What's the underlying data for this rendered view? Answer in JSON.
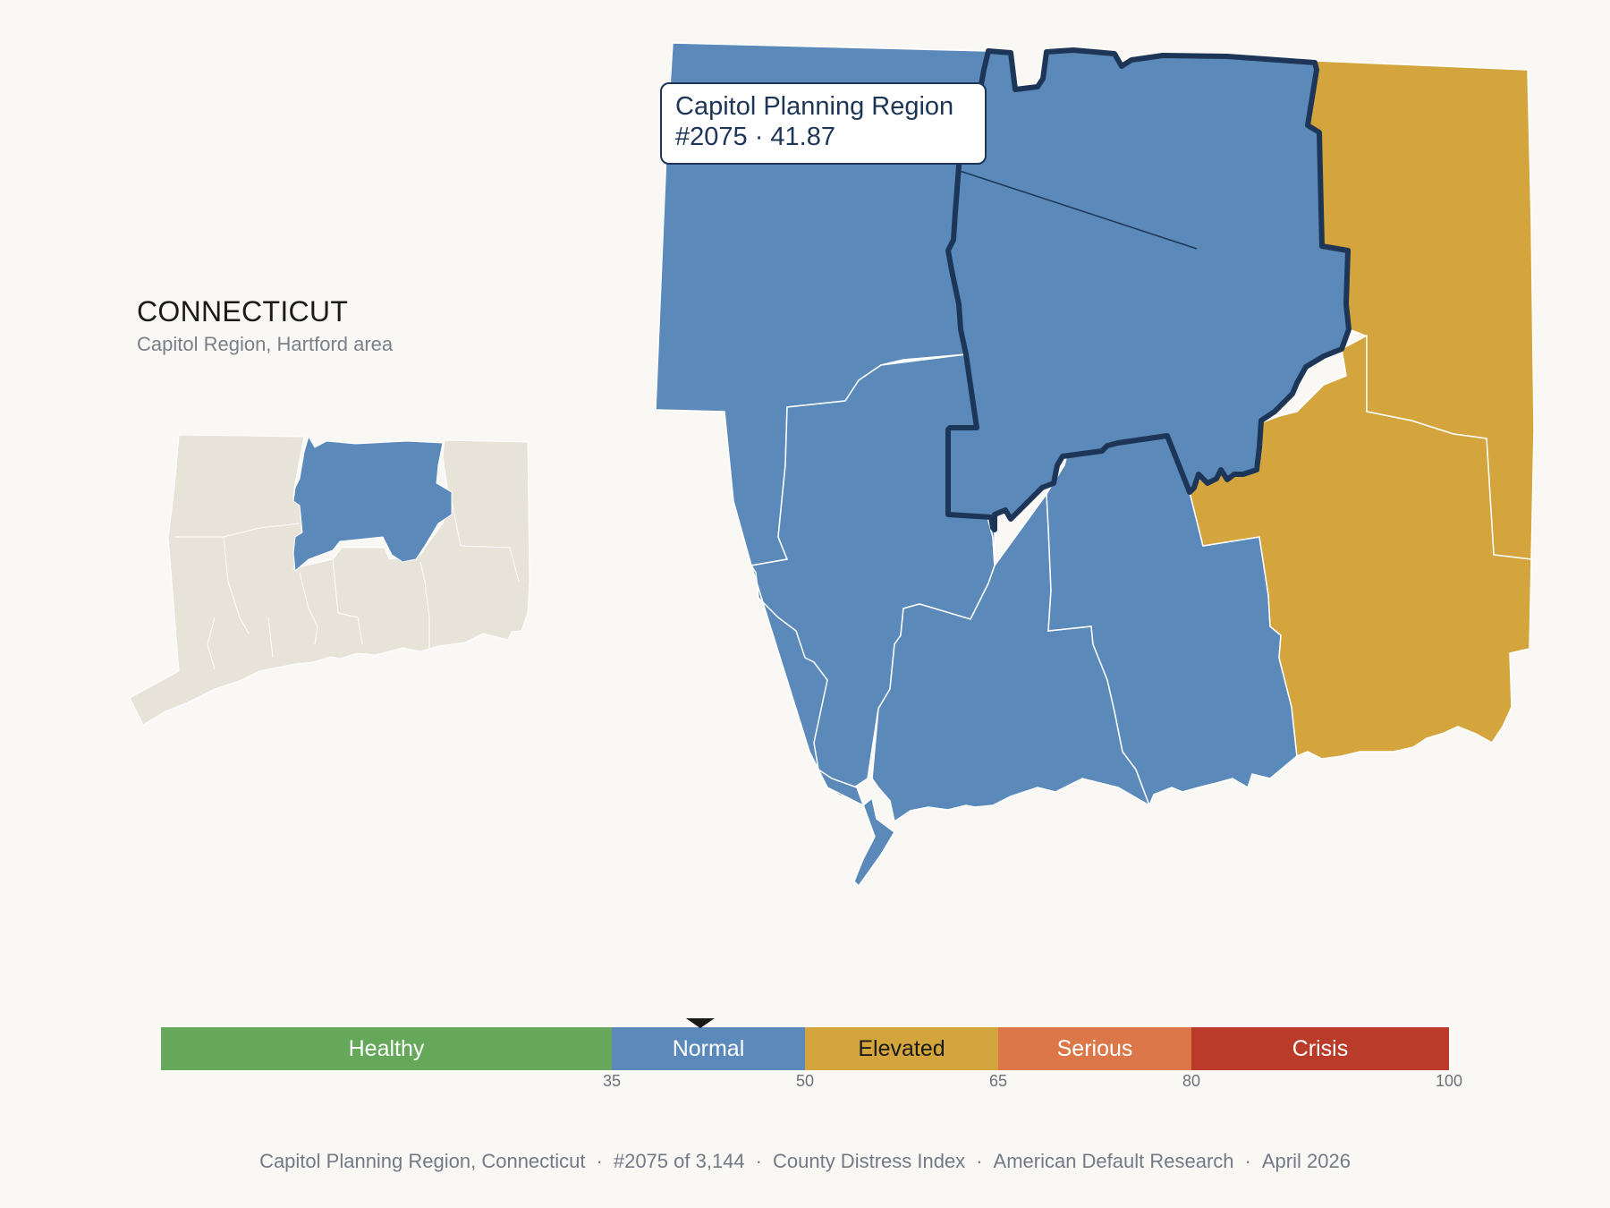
{
  "state": {
    "title": "CONNECTICUT",
    "subtitle": "Capitol Region, Hartford area"
  },
  "tooltip": {
    "line1": "Capitol Planning Region",
    "line2": "#2075 · 41.87"
  },
  "colors": {
    "normal": "#5b8aba",
    "elevated": "#d4a53c",
    "inset_fill": "#e8e3d8",
    "highlight_outline": "#1d3557",
    "healthy": "#66a85a",
    "serious": "#db7748",
    "crisis": "#bb3b2b"
  },
  "scale": {
    "min": 0,
    "max": 100,
    "value": 41.87,
    "bands": [
      {
        "label": "Healthy",
        "from": 0,
        "to": 35,
        "color": "#66a85a",
        "text": "#ffffff"
      },
      {
        "label": "Normal",
        "from": 35,
        "to": 50,
        "color": "#5b8aba",
        "text": "#ffffff"
      },
      {
        "label": "Elevated",
        "from": 50,
        "to": 65,
        "color": "#d4a53c",
        "text": "#1a1a1a"
      },
      {
        "label": "Serious",
        "from": 65,
        "to": 80,
        "color": "#db7748",
        "text": "#ffffff"
      },
      {
        "label": "Crisis",
        "from": 80,
        "to": 100,
        "color": "#bb3b2b",
        "text": "#ffffff"
      }
    ],
    "ticks": [
      "35",
      "50",
      "65",
      "80",
      "100"
    ]
  },
  "footer": {
    "items": [
      "Capitol Planning Region, Connecticut",
      "#2075 of 3,144",
      "County Distress Index",
      "American Default Research",
      "April 2026"
    ]
  }
}
